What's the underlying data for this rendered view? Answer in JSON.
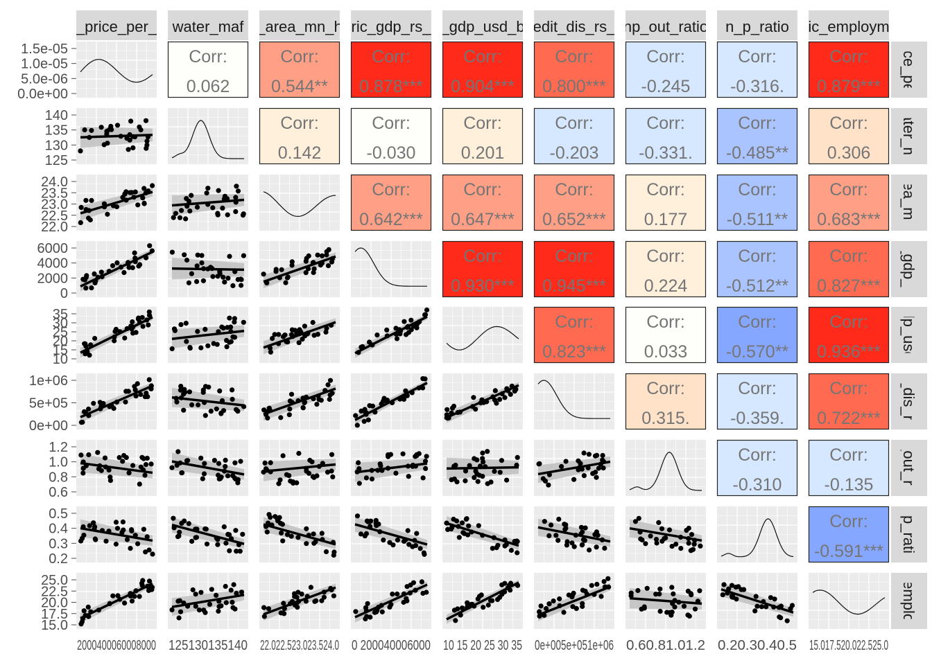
{
  "chart_data": {
    "type": "scatter",
    "layout": "pairs-matrix",
    "variables": [
      "_price_per_",
      "water_maf",
      "_area_mn_h",
      "ric_gdp_rs_",
      "_gdp_usd_b",
      "edit_dis_rs_",
      "np_out_ratio",
      "n_p_ratio",
      "ic_employm"
    ],
    "row_strip_labels": [
      "rice_per",
      "ater_m",
      "rea_mn",
      "_gdp_r",
      "dp_usd",
      "t_dis_rs",
      "_out_ra",
      "_p_ratio",
      "_employ"
    ],
    "corr_label": "Corr:",
    "correlations": [
      {
        "row": 0,
        "col": 1,
        "text": "0.062",
        "r": 0.062
      },
      {
        "row": 0,
        "col": 2,
        "text": "0.544**",
        "r": 0.544
      },
      {
        "row": 0,
        "col": 3,
        "text": "0.878***",
        "r": 0.878
      },
      {
        "row": 0,
        "col": 4,
        "text": "0.904***",
        "r": 0.904
      },
      {
        "row": 0,
        "col": 5,
        "text": "0.800***",
        "r": 0.8
      },
      {
        "row": 0,
        "col": 6,
        "text": "-0.245",
        "r": -0.245
      },
      {
        "row": 0,
        "col": 7,
        "text": "-0.316.",
        "r": -0.316
      },
      {
        "row": 0,
        "col": 8,
        "text": "0.879***",
        "r": 0.879
      },
      {
        "row": 1,
        "col": 2,
        "text": "0.142",
        "r": 0.142
      },
      {
        "row": 1,
        "col": 3,
        "text": "-0.030",
        "r": -0.03
      },
      {
        "row": 1,
        "col": 4,
        "text": "0.201",
        "r": 0.201
      },
      {
        "row": 1,
        "col": 5,
        "text": "-0.203",
        "r": -0.203
      },
      {
        "row": 1,
        "col": 6,
        "text": "-0.331.",
        "r": -0.331
      },
      {
        "row": 1,
        "col": 7,
        "text": "-0.485**",
        "r": -0.485
      },
      {
        "row": 1,
        "col": 8,
        "text": "0.306",
        "r": 0.306
      },
      {
        "row": 2,
        "col": 3,
        "text": "0.642***",
        "r": 0.642
      },
      {
        "row": 2,
        "col": 4,
        "text": "0.647***",
        "r": 0.647
      },
      {
        "row": 2,
        "col": 5,
        "text": "0.652***",
        "r": 0.652
      },
      {
        "row": 2,
        "col": 6,
        "text": "0.177",
        "r": 0.177
      },
      {
        "row": 2,
        "col": 7,
        "text": "-0.511**",
        "r": -0.511
      },
      {
        "row": 2,
        "col": 8,
        "text": "0.683***",
        "r": 0.683
      },
      {
        "row": 3,
        "col": 4,
        "text": "0.930***",
        "r": 0.93
      },
      {
        "row": 3,
        "col": 5,
        "text": "0.945***",
        "r": 0.945
      },
      {
        "row": 3,
        "col": 6,
        "text": "0.224",
        "r": 0.224
      },
      {
        "row": 3,
        "col": 7,
        "text": "-0.512**",
        "r": -0.512
      },
      {
        "row": 3,
        "col": 8,
        "text": "0.827***",
        "r": 0.827
      },
      {
        "row": 4,
        "col": 5,
        "text": "0.823***",
        "r": 0.823
      },
      {
        "row": 4,
        "col": 6,
        "text": "0.033",
        "r": 0.033
      },
      {
        "row": 4,
        "col": 7,
        "text": "-0.570**",
        "r": -0.57
      },
      {
        "row": 4,
        "col": 8,
        "text": "0.936***",
        "r": 0.936
      },
      {
        "row": 5,
        "col": 6,
        "text": "0.315.",
        "r": 0.315
      },
      {
        "row": 5,
        "col": 7,
        "text": "-0.359.",
        "r": -0.359
      },
      {
        "row": 5,
        "col": 8,
        "text": "0.722***",
        "r": 0.722
      },
      {
        "row": 6,
        "col": 7,
        "text": "-0.310",
        "r": -0.31
      },
      {
        "row": 6,
        "col": 8,
        "text": "-0.135",
        "r": -0.135
      },
      {
        "row": 7,
        "col": 8,
        "text": "-0.591***",
        "r": -0.591
      }
    ],
    "y_tick_labels": [
      [
        "1.5e-05",
        "1.0e-05",
        "5.0e-06",
        "0.0e+00"
      ],
      [
        "140",
        "135",
        "130",
        "125"
      ],
      [
        "24.0",
        "23.5",
        "23.0",
        "22.5",
        "22.0"
      ],
      [
        "6000",
        "4000",
        "2000",
        "0"
      ],
      [
        "35",
        "30",
        "25",
        "20",
        "15",
        "10"
      ],
      [
        "1e+06",
        "5e+05",
        "0e+00"
      ],
      [
        "1.2",
        "1.0",
        "0.8",
        "0.6"
      ],
      [
        "0.5",
        "0.4",
        "0.3",
        "0.2"
      ],
      [
        "25.0",
        "22.5",
        "20.0",
        "17.5",
        "15.0"
      ]
    ],
    "x_tick_labels": [
      "2000400060008000",
      "125130135140",
      "22.022.523.023.524.0",
      "0 200040006000",
      "10 15 20 25 30 35",
      "0e+005e+051e+06",
      "0.60.81.01.2",
      "0.20.30.40.5",
      "15.017.520.022.525.0"
    ],
    "colors": {
      "strong_positive": "#ff2a1a",
      "moderate_positive": "#ff9f85",
      "weak_positive": "#fff0dc",
      "neutral": "#fefefa",
      "weak_negative": "#d6e8ff",
      "moderate_negative": "#aac4ff",
      "strong_negative": "#86a7ff",
      "strip": "#d9d9d9",
      "panel": "#ebebeb",
      "grid": "#ffffff",
      "points": "#000000",
      "smooth_band": "#bdbdbd",
      "corr_text": "#757575"
    },
    "grid": true
  }
}
